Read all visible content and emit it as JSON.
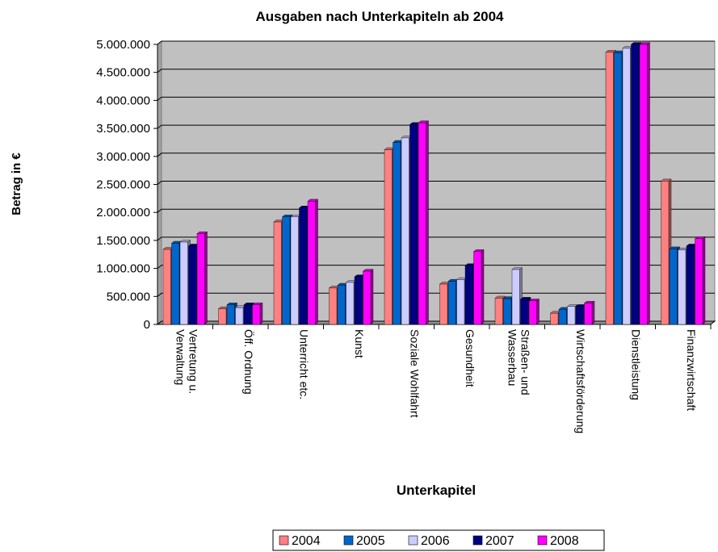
{
  "chart_data": {
    "type": "bar3d",
    "title": "Ausgaben nach Unterkapiteln ab 2004",
    "x_label": "Unterkapitel",
    "y_label": "Betrag in €",
    "categories": [
      "Vertretung u. Verwaltung",
      "Öff. Ordnung",
      "Unterricht etc.",
      "Kunst",
      "Soziale Wohlfahrt",
      "Gesundheit",
      "Straßen- und Wasserbau",
      "Wirtschaftsförderung",
      "Dienstleistung",
      "Finanzwirtschaft"
    ],
    "series": [
      {
        "name": "2004",
        "color": "#ff8080",
        "values": [
          1340000,
          280000,
          1830000,
          650000,
          3120000,
          720000,
          470000,
          200000,
          4860000,
          2560000
        ]
      },
      {
        "name": "2005",
        "color": "#0066cc",
        "values": [
          1450000,
          350000,
          1920000,
          700000,
          3250000,
          770000,
          460000,
          270000,
          4850000,
          1350000
        ]
      },
      {
        "name": "2006",
        "color": "#ccccff",
        "values": [
          1470000,
          300000,
          1920000,
          750000,
          3330000,
          800000,
          980000,
          320000,
          4930000,
          1330000
        ]
      },
      {
        "name": "2007",
        "color": "#000080",
        "values": [
          1400000,
          350000,
          2080000,
          850000,
          3570000,
          1050000,
          450000,
          320000,
          5000000,
          1400000
        ]
      },
      {
        "name": "2008",
        "color": "#ff00ff",
        "values": [
          1620000,
          350000,
          2200000,
          950000,
          3600000,
          1300000,
          420000,
          380000,
          5000000,
          1530000
        ]
      }
    ],
    "ylim": [
      0,
      5000000
    ],
    "yticks": [
      0,
      {
        "value": 500000,
        "label": "500.000"
      },
      {
        "value": 1000000,
        "label": "1.000.000"
      },
      {
        "value": 1500000,
        "label": "1.500.000"
      },
      {
        "value": 2000000,
        "label": "2.000.000"
      },
      {
        "value": 2500000,
        "label": "2.500.000"
      },
      {
        "value": 3000000,
        "label": "3.000.000"
      },
      {
        "value": 3500000,
        "label": "3.500.000"
      },
      {
        "value": 4000000,
        "label": "4.000.000"
      },
      {
        "value": 4500000,
        "label": "4.500.000"
      },
      {
        "value": 5000000,
        "label": "5.000.000"
      }
    ],
    "grid": true,
    "legend": "bottom"
  }
}
